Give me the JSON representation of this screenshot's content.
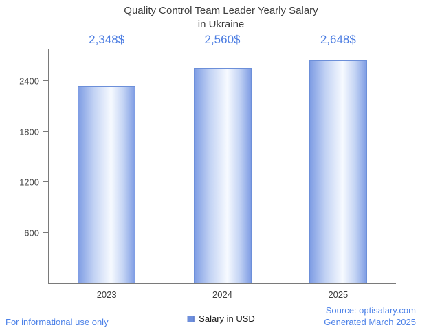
{
  "chart_data": {
    "type": "bar",
    "title": "Quality Control Team Leader Yearly Salary in Ukraine",
    "title_lines": [
      "Quality Control Team Leader Yearly Salary",
      "in Ukraine"
    ],
    "categories": [
      "2023",
      "2024",
      "2025"
    ],
    "values": [
      2348,
      2560,
      2648
    ],
    "value_labels": [
      "2,348$",
      "2,560$",
      "2,648$"
    ],
    "xlabel": "",
    "ylabel": "",
    "ylim": [
      0,
      2780
    ],
    "yticks": [
      600,
      1200,
      1800,
      2400
    ],
    "grid": false,
    "legend_position": "bottom",
    "bar_gradient_edge_color": "#7f9de4",
    "bar_border_color": "#6c8fd9",
    "legend_color": "#6e8fdd",
    "accent_text_color": "#4d7ee2"
  },
  "legend": {
    "label": "Salary in USD"
  },
  "footer": {
    "left": "For informational use only",
    "source": "Source: optisalary.com",
    "generated": "Generated March 2025"
  }
}
